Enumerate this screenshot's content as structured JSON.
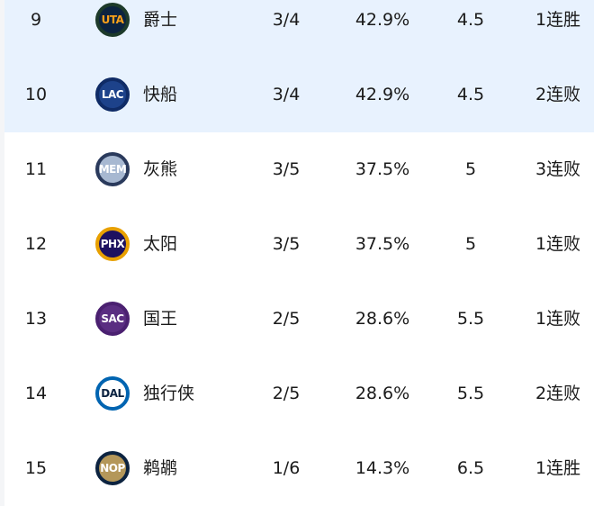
{
  "rows": [
    {
      "rank": "9",
      "abbr": "UTA",
      "name": "爵士",
      "record": "3/4",
      "pct": "42.9%",
      "gb": "4.5",
      "streak": "1连胜",
      "highlight": true,
      "logo_bg": "#0c2340",
      "logo_ring": "#1d3a2a",
      "logo_fg": "#f9a01b"
    },
    {
      "rank": "10",
      "abbr": "LAC",
      "name": "快船",
      "record": "3/4",
      "pct": "42.9%",
      "gb": "4.5",
      "streak": "2连败",
      "highlight": true,
      "logo_bg": "#1d428a",
      "logo_ring": "#0f2b66",
      "logo_fg": "#ffffff"
    },
    {
      "rank": "11",
      "abbr": "MEM",
      "name": "灰熊",
      "record": "3/5",
      "pct": "37.5%",
      "gb": "5",
      "streak": "3连败",
      "highlight": false,
      "logo_bg": "#a7b8d1",
      "logo_ring": "#2a3a5c",
      "logo_fg": "#ffffff"
    },
    {
      "rank": "12",
      "abbr": "PHX",
      "name": "太阳",
      "record": "3/5",
      "pct": "37.5%",
      "gb": "5",
      "streak": "1连败",
      "highlight": false,
      "logo_bg": "#1d1160",
      "logo_ring": "#e8a000",
      "logo_fg": "#ffffff"
    },
    {
      "rank": "13",
      "abbr": "SAC",
      "name": "国王",
      "record": "2/5",
      "pct": "28.6%",
      "gb": "5.5",
      "streak": "1连败",
      "highlight": false,
      "logo_bg": "#5a2d81",
      "logo_ring": "#4a2070",
      "logo_fg": "#ffffff"
    },
    {
      "rank": "14",
      "abbr": "DAL",
      "name": "独行侠",
      "record": "2/5",
      "pct": "28.6%",
      "gb": "5.5",
      "streak": "2连败",
      "highlight": false,
      "logo_bg": "#ffffff",
      "logo_ring": "#0064b1",
      "logo_fg": "#0b2240"
    },
    {
      "rank": "15",
      "abbr": "NOP",
      "name": "鹈鹕",
      "record": "1/6",
      "pct": "14.3%",
      "gb": "6.5",
      "streak": "1连胜",
      "highlight": false,
      "logo_bg": "#b4975a",
      "logo_ring": "#0c2340",
      "logo_fg": "#ffffff"
    }
  ]
}
